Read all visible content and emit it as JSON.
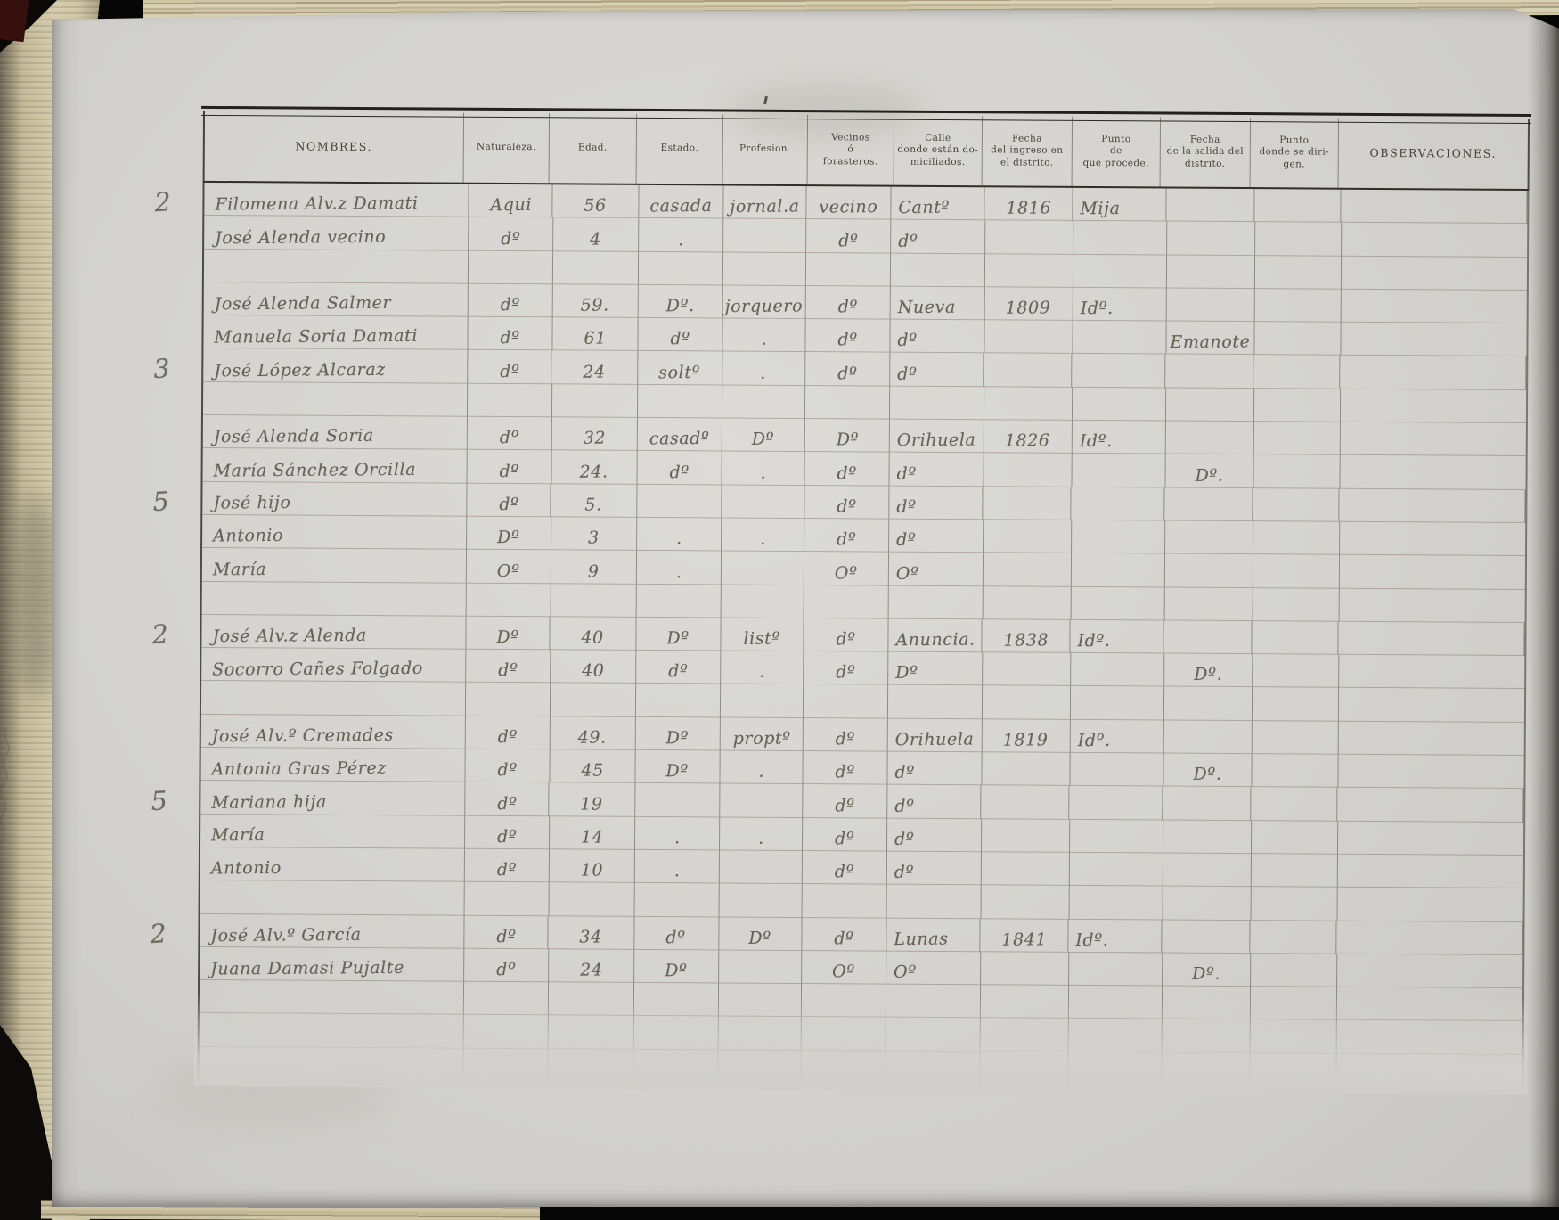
{
  "table": {
    "columns": [
      {
        "key": "nombre",
        "label": "NOMBRES."
      },
      {
        "key": "naturaleza",
        "label": "Naturaleza."
      },
      {
        "key": "edad",
        "label": "Edad."
      },
      {
        "key": "estado",
        "label": "Estado."
      },
      {
        "key": "profesion",
        "label": "Profesion."
      },
      {
        "key": "vecinos",
        "label": "Vecinos\nó\nforasteros."
      },
      {
        "key": "calle",
        "label": "Calle\ndonde están do-\nmiciliados."
      },
      {
        "key": "fecha_ingreso",
        "label": "Fecha\ndel ingreso en\nel distrito."
      },
      {
        "key": "punto_procede",
        "label": "Punto\nde\nque procede."
      },
      {
        "key": "fecha_salida",
        "label": "Fecha\nde la salida del\ndistrito."
      },
      {
        "key": "punto_dirigen",
        "label": "Punto\ndonde se diri-\ngen."
      },
      {
        "key": "observaciones",
        "label": "OBSERVACIONES."
      }
    ],
    "rows": [
      {
        "margin": "2",
        "nombre": "Filomena Alv.z Damati",
        "naturaleza": "Aqui",
        "edad": "56",
        "estado": "casada",
        "profesion": "jornal.a",
        "vecinos": "vecino",
        "calle": "Cantº",
        "fecha_ingreso": "1816",
        "punto_procede": "Mija"
      },
      {
        "nombre": "José Alenda vecino",
        "naturaleza": "dº",
        "edad": "4",
        "estado": ".",
        "vecinos": "dº",
        "calle": "dº"
      },
      {},
      {
        "nombre": "José Alenda Salmer",
        "naturaleza": "dº",
        "edad": "59.",
        "estado": "Dº.",
        "profesion": "jorquero",
        "vecinos": "dº",
        "calle": "Nueva",
        "fecha_ingreso": "1809",
        "punto_procede": "Idº."
      },
      {
        "nombre": "Manuela Soria Damati",
        "naturaleza": "dº",
        "edad": "61",
        "estado": "dº",
        "profesion": ".",
        "vecinos": "dº",
        "calle": "dº",
        "fecha_salida": "Emanote"
      },
      {
        "margin": "3",
        "nombre": "José López Alcaraz",
        "naturaleza": "dº",
        "edad": "24",
        "estado": "soltº",
        "profesion": ".",
        "vecinos": "dº",
        "calle": "dº"
      },
      {},
      {
        "nombre": "José Alenda Soria",
        "naturaleza": "dº",
        "edad": "32",
        "estado": "casadº",
        "profesion": "Dº",
        "vecinos": "Dº",
        "calle": "Orihuela",
        "fecha_ingreso": "1826",
        "punto_procede": "Idº."
      },
      {
        "nombre": "María Sánchez Orcilla",
        "naturaleza": "dº",
        "edad": "24.",
        "estado": "dº",
        "profesion": ".",
        "vecinos": "dº",
        "calle": "dº",
        "fecha_salida": "Dº."
      },
      {
        "margin": "5",
        "nombre": "José hijo",
        "naturaleza": "dº",
        "edad": "5.",
        "vecinos": "dº",
        "calle": "dº"
      },
      {
        "nombre": "Antonio",
        "naturaleza": "Dº",
        "edad": "3",
        "estado": ".",
        "profesion": ".",
        "vecinos": "dº",
        "calle": "dº"
      },
      {
        "nombre": "María",
        "naturaleza": "Oº",
        "edad": "9",
        "estado": ".",
        "vecinos": "Oº",
        "calle": "Oº"
      },
      {},
      {
        "margin": "2",
        "nombre": "José Alv.z Alenda",
        "naturaleza": "Dº",
        "edad": "40",
        "estado": "Dº",
        "profesion": "listº",
        "vecinos": "dº",
        "calle": "Anuncia.",
        "fecha_ingreso": "1838",
        "punto_procede": "Idº."
      },
      {
        "nombre": "Socorro Cañes Folgado",
        "naturaleza": "dº",
        "edad": "40",
        "estado": "dº",
        "profesion": ".",
        "vecinos": "dº",
        "calle": "Dº",
        "fecha_salida": "Dº."
      },
      {},
      {
        "nombre": "José Alv.º Cremades",
        "naturaleza": "dº",
        "edad": "49.",
        "estado": "Dº",
        "profesion": "proptº",
        "vecinos": "dº",
        "calle": "Orihuela",
        "fecha_ingreso": "1819",
        "punto_procede": "Idº."
      },
      {
        "nombre": "Antonia Gras Pérez",
        "naturaleza": "dº",
        "edad": "45",
        "estado": "Dº",
        "profesion": ".",
        "vecinos": "dº",
        "calle": "dº",
        "fecha_salida": "Dº."
      },
      {
        "margin": "5",
        "nombre": "Mariana hija",
        "naturaleza": "dº",
        "edad": "19",
        "vecinos": "dº",
        "calle": "dº"
      },
      {
        "nombre": "María",
        "naturaleza": "dº",
        "edad": "14",
        "estado": ".",
        "profesion": ".",
        "vecinos": "dº",
        "calle": "dº"
      },
      {
        "nombre": "Antonio",
        "naturaleza": "dº",
        "edad": "10",
        "estado": ".",
        "vecinos": "dº",
        "calle": "dº"
      },
      {},
      {
        "margin": "2",
        "nombre": "José Alv.º García",
        "naturaleza": "dº",
        "edad": "34",
        "estado": "dº",
        "profesion": "Dº",
        "vecinos": "dº",
        "calle": "Lunas",
        "fecha_ingreso": "1841",
        "punto_procede": "Idº."
      },
      {
        "nombre": "Juana Damasi Pujalte",
        "naturaleza": "dº",
        "edad": "24",
        "estado": "Dº",
        "vecinos": "Oº",
        "calle": "Oº",
        "fecha_salida": "Dº."
      },
      {},
      {},
      {}
    ]
  }
}
